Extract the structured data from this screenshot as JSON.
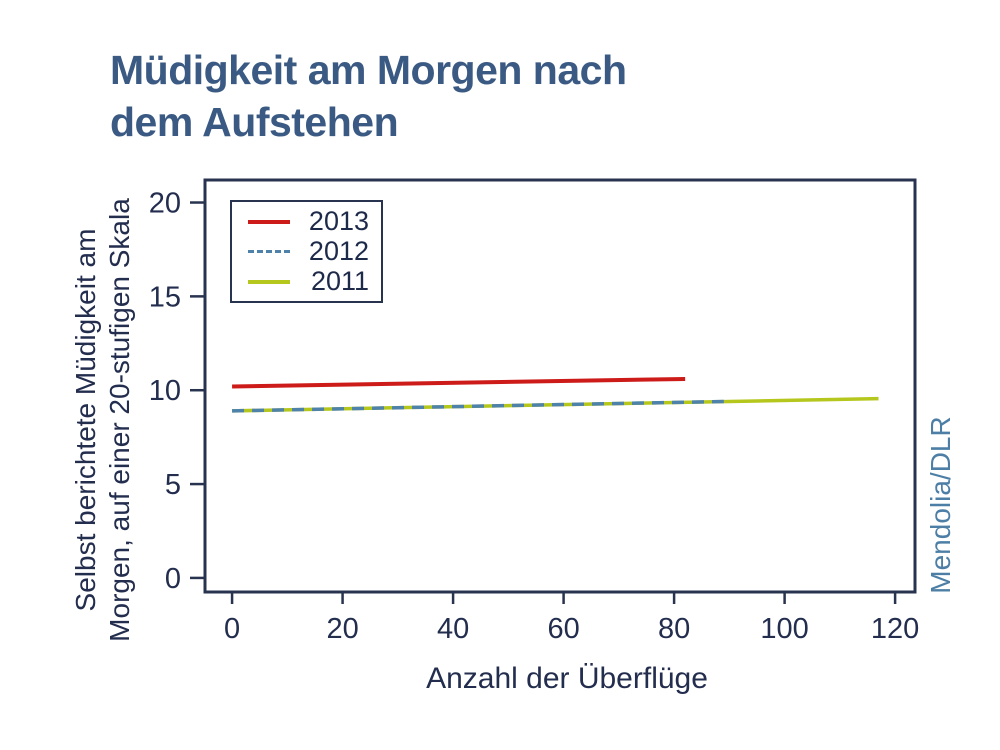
{
  "page": {
    "title_lines": [
      "Müdigkeit am Morgen nach",
      "dem Aufstehen"
    ],
    "credit": "Mendolia/DLR"
  },
  "colors": {
    "background": "#ffffff",
    "title_text": "#3b5a83",
    "axis_text": "#232d4e",
    "frame": "#28334f",
    "credit_text": "#4d7fa6",
    "series_2013": "#cc1b18",
    "series_2012": "#4e82ab",
    "series_2011": "#b5c71d"
  },
  "chart_data": {
    "type": "line",
    "title": "Müdigkeit am Morgen nach dem Aufstehen",
    "xlabel": "Anzahl der Überflüge",
    "ylabel": "Selbst berichtete Müdigkeit am Morgen, auf einer 20-stufigen Skala",
    "ylabel_lines": [
      "Selbst berichtete Müdigkeit am",
      "Morgen, auf einer 20-stufigen Skala"
    ],
    "x_ticks": [
      0,
      20,
      40,
      60,
      80,
      100,
      120
    ],
    "y_ticks": [
      0,
      5,
      10,
      15,
      20
    ],
    "xlim": [
      -4.9,
      123.6
    ],
    "ylim": [
      -0.75,
      21.2
    ],
    "grid": false,
    "legend_position": "top-left-inside",
    "credit": "Mendolia/DLR",
    "series": [
      {
        "name": "2013",
        "color": "#cc1b18",
        "line_style": "solid",
        "points": [
          [
            0,
            10.2
          ],
          [
            82,
            10.6
          ]
        ]
      },
      {
        "name": "2012",
        "color": "#4e82ab",
        "line_style": "dashed",
        "points": [
          [
            0,
            8.9
          ],
          [
            89,
            9.4
          ]
        ]
      },
      {
        "name": "2011",
        "color": "#b5c71d",
        "line_style": "solid",
        "points": [
          [
            0,
            8.9
          ],
          [
            117,
            9.55
          ]
        ]
      }
    ]
  }
}
